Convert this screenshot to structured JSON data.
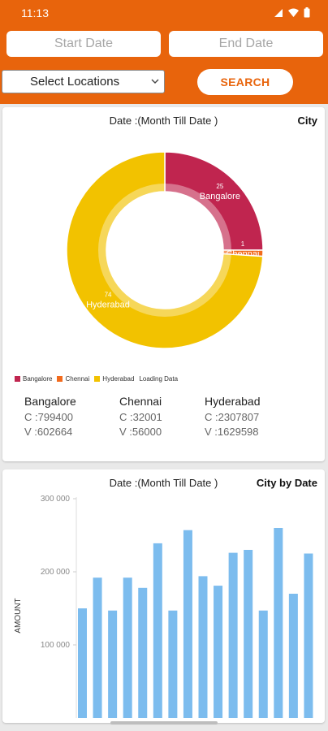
{
  "status": {
    "time": "11:13"
  },
  "filters": {
    "start_date_placeholder": "Start Date",
    "end_date_placeholder": "End Date",
    "location_select": "Select Locations",
    "search_label": "SEARCH"
  },
  "city_card": {
    "title": "Date :(Month Till Date )",
    "right_label": "City",
    "legend": [
      "Bangalore",
      "Chennai",
      "Hyderabad",
      "Loading Data"
    ],
    "stats": [
      {
        "name": "Bangalore",
        "c": "C :799400",
        "v": "V :602664"
      },
      {
        "name": "Chennai",
        "c": "C :32001",
        "v": "V :56000"
      },
      {
        "name": "Hyderabad",
        "c": "C :2307807",
        "v": "V :1629598"
      }
    ]
  },
  "date_card": {
    "title": "Date :(Month Till Date )",
    "right_label": "City by Date"
  },
  "colors": {
    "brand": "#e8640c",
    "bangalore": "#c0254f",
    "chennai": "#f26b1d",
    "hyderabad": "#f2c200",
    "bar": "#7cbcee"
  },
  "chart_data": [
    {
      "type": "pie",
      "labels": [
        "Bangalore",
        "Chennai",
        "Hyderabad"
      ],
      "values": [
        25,
        1,
        74
      ],
      "data_labels": [
        "25",
        "1",
        "74"
      ]
    },
    {
      "type": "bar",
      "ylabel": "AMOUNT",
      "yticks": [
        100000,
        200000,
        300000
      ],
      "ytick_labels": [
        "100 000",
        "200 000",
        "300 000"
      ],
      "ylim": [
        0,
        300000
      ],
      "values": [
        150000,
        192000,
        147000,
        192000,
        178000,
        239000,
        147000,
        257000,
        194000,
        181000,
        226000,
        230000,
        147000,
        260000,
        170000,
        225000
      ]
    }
  ]
}
